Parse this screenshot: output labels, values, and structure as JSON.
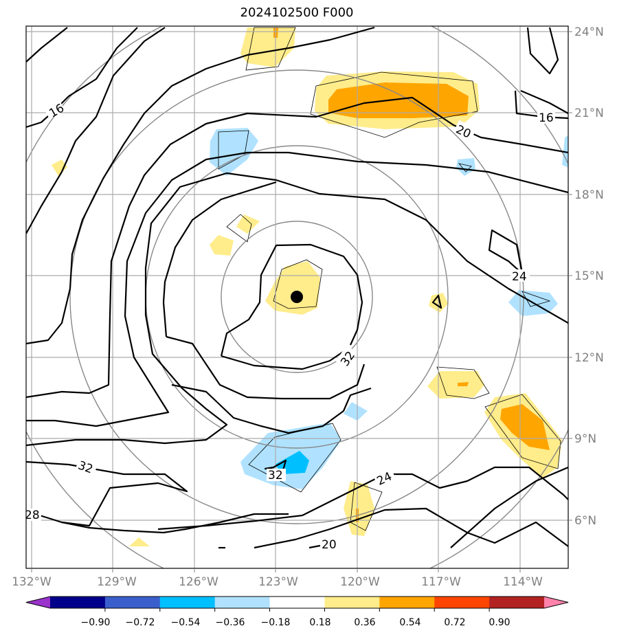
{
  "title": "2024102500 F000",
  "map": {
    "lon_labels": [
      "132°W",
      "129°W",
      "126°W",
      "123°W",
      "120°W",
      "117°W",
      "114°W"
    ],
    "lat_labels": [
      "24°N",
      "21°N",
      "18°N",
      "15°N",
      "12°N",
      "9°N",
      "6°N"
    ],
    "contour_labels": [
      "16",
      "16",
      "20",
      "20",
      "24",
      "24",
      "28",
      "32",
      "32",
      "32"
    ],
    "storm_center": {
      "lon": "122.3°W",
      "lat": "14.2°N"
    }
  },
  "colorbar": {
    "tick_labels": [
      "−0.90",
      "−0.72",
      "−0.54",
      "−0.36",
      "−0.18",
      "0.18",
      "0.36",
      "0.54",
      "0.72",
      "0.90"
    ],
    "colors": [
      "#9933cc",
      "#00008b",
      "#3a5fcd",
      "#00bfff",
      "#b0e2ff",
      "#ffffff",
      "#ffec8b",
      "#ffa500",
      "#ff4500",
      "#b22222",
      "#ff82ab"
    ]
  }
}
